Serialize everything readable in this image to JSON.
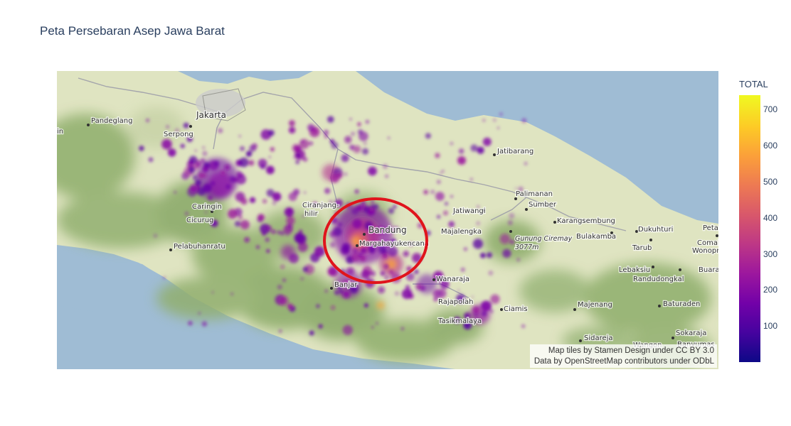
{
  "title": "Peta Persebaran Asep Jawa Barat",
  "colorbar": {
    "title": "TOTAL",
    "min": 0,
    "max": 740,
    "ticks": [
      100,
      200,
      300,
      400,
      500,
      600,
      700
    ],
    "colorscale": [
      "#0d0887",
      "#46039f",
      "#7201a8",
      "#9c179e",
      "#bd3786",
      "#d8576b",
      "#ed7953",
      "#fb9f3a",
      "#fdca26",
      "#f0f921"
    ]
  },
  "attribution": {
    "line1": "Map tiles by Stamen Design under CC BY 3.0",
    "line2": "Data by OpenStreetMap contributors under ODbL"
  },
  "colors": {
    "sea": "#9fbcd4",
    "land": "#dfe5c3",
    "forest": "#8fae6c",
    "highlight_ring": "#e0141c"
  },
  "places": {
    "jakarta": "Jakarta",
    "pandeglang": "Pandeglang",
    "serpong": "Serpong",
    "jatibarang": "Jatibarang",
    "palimanan": "Palimanan",
    "sumber": "Sumber",
    "jatiwangi": "Jatiwangi",
    "majalengka": "Majalengka",
    "karangsembung": "Karangsembung",
    "bulakamba": "Bulakamba",
    "dukuhturi": "Dukuhturi",
    "peta": "Peta",
    "tarub": "Tarub",
    "comal": "Comal",
    "wonopri": "Wonopri",
    "lebaksiu": "Lebaksiu",
    "randudongkal": "Randudongkal",
    "buaran": "Buaran",
    "caringin": "Caringin",
    "cicurug": "Cicurug",
    "pelabuhanratu": "Pelabuhanratu",
    "ciranjang": "Ciranjang-",
    "hilir": "hilir",
    "bandung": "Bandung",
    "margahayu": "Margahayukencana",
    "gunung_ciremai": "Gunung Ciremay",
    "ciremai_elev": "3077m",
    "wanaraja": "Wanaraja",
    "banjar": "Banjar",
    "rajapolah": "Rajapolah",
    "ciamis": "Ciamis",
    "tasikmalaya": "Tasikmalaya",
    "majenang": "Majenang",
    "baturaden": "Baturaden",
    "sidareja": "Sidareja",
    "wangon": "Wangon",
    "sokaraja": "Sokaraja",
    "banyumas": "Banyumas",
    "edge_in": "in"
  }
}
